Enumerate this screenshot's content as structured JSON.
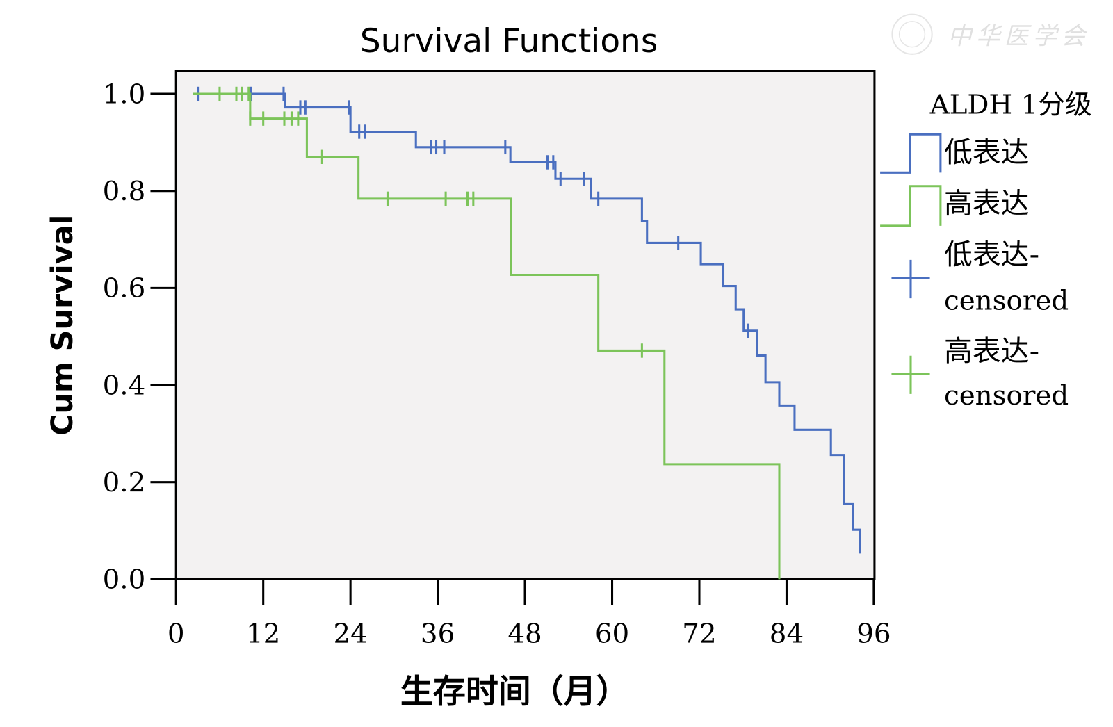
{
  "watermark": {
    "text": "中华医学会"
  },
  "chart_data": {
    "type": "line",
    "subtype": "kaplan-meier step",
    "title": "Survival Functions",
    "xlabel": "生存时间（月）",
    "ylabel": "Cum Survival",
    "xlim": [
      0,
      96
    ],
    "ylim": [
      0,
      1
    ],
    "xticks": [
      "0",
      "12",
      "24",
      "36",
      "48",
      "60",
      "72",
      "84",
      "96"
    ],
    "yticks": [
      "0.0",
      "0.2",
      "0.4",
      "0.6",
      "0.8",
      "1.0"
    ],
    "grid": false,
    "legend_title": "ALDH 1分级",
    "legend_position": "right",
    "series": [
      {
        "name": "低表达",
        "censored_label": "低表达-censored",
        "color": "#4a6fc0",
        "start": 2.3,
        "steps": [
          [
            0,
            1.0
          ],
          [
            15.0,
            0.972
          ],
          [
            24.0,
            0.922
          ],
          [
            33.0,
            0.89
          ],
          [
            46.0,
            0.859
          ],
          [
            52.2,
            0.825
          ],
          [
            57.1,
            0.784
          ],
          [
            64.1,
            0.738
          ],
          [
            64.8,
            0.693
          ],
          [
            72.2,
            0.649
          ],
          [
            75.3,
            0.604
          ],
          [
            77.0,
            0.556
          ],
          [
            78.1,
            0.512
          ],
          [
            79.9,
            0.461
          ],
          [
            81.1,
            0.406
          ],
          [
            83.0,
            0.358
          ],
          [
            85.1,
            0.308
          ],
          [
            90.1,
            0.256
          ],
          [
            91.9,
            0.156
          ],
          [
            93.1,
            0.102
          ],
          [
            94.1,
            0.053
          ]
        ],
        "end": 94.1,
        "censored": [
          3.0,
          10.3,
          14.8,
          17.1,
          17.8,
          23.8,
          25.2,
          26.0,
          35.1,
          35.8,
          36.9,
          45.3,
          51.1,
          51.9,
          52.9,
          56.1,
          58.1,
          69.1,
          78.7
        ]
      },
      {
        "name": "高表达",
        "censored_label": "高表达-censored",
        "color": "#7cc45a",
        "start": 2.3,
        "steps": [
          [
            0,
            1.0
          ],
          [
            10.2,
            0.949
          ],
          [
            18.0,
            0.87
          ],
          [
            25.1,
            0.784
          ],
          [
            46.1,
            0.627
          ],
          [
            58.1,
            0.471
          ],
          [
            67.2,
            0.237
          ],
          [
            83.0,
            0.0
          ]
        ],
        "end": 83.0,
        "censored": [
          6.0,
          8.3,
          9.1,
          10.2,
          10.0,
          12.0,
          14.9,
          15.9,
          16.8,
          20.1,
          29.1,
          37.1,
          40.1,
          40.9,
          64.1
        ]
      }
    ]
  },
  "legend": {
    "title": "ALDH 1分级",
    "items": [
      {
        "label": "低表达"
      },
      {
        "label": "高表达"
      },
      {
        "label1": "低表达-",
        "label2": "censored"
      },
      {
        "label1": "高表达-",
        "label2": "censored"
      }
    ]
  }
}
